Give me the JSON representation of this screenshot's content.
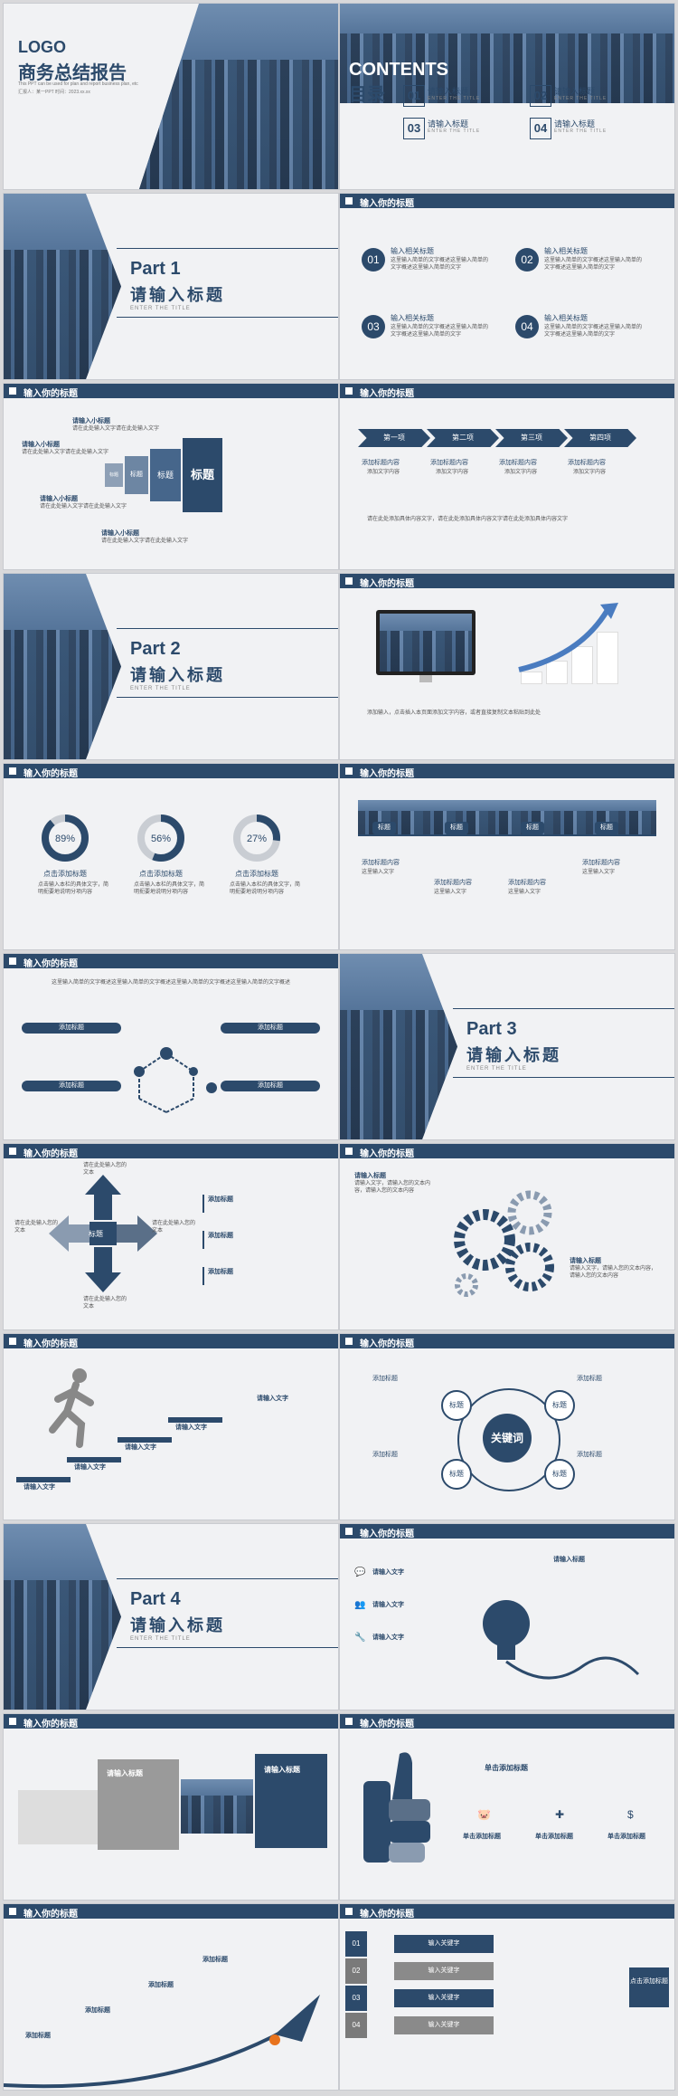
{
  "slides": {
    "s1": {
      "logo": "LOGO",
      "title": "商务总结报告",
      "subtitle": "This PPT can be used for plan and report business plan, etc",
      "meta": "汇报人：某一PPT 时间：2023.xx.xx"
    },
    "s2": {
      "contents_word": "CONTENTS",
      "mulu": "目录",
      "items": [
        {
          "num": "01",
          "title": "请输入标题",
          "sub": "ENTER THE TITLE"
        },
        {
          "num": "02",
          "title": "请输入标题",
          "sub": "ENTER THE TITLE"
        },
        {
          "num": "03",
          "title": "请输入标题",
          "sub": "ENTER THE TITLE"
        },
        {
          "num": "04",
          "title": "请输入标题",
          "sub": "ENTER THE TITLE"
        }
      ]
    },
    "part1": {
      "part": "Part 1",
      "title": "请输入标题",
      "sub": "ENTER THE TITLE"
    },
    "s4": {
      "header": "输入你的标题",
      "items": [
        {
          "num": "01",
          "title": "输入相关标题"
        },
        {
          "num": "02",
          "title": "输入相关标题"
        },
        {
          "num": "03",
          "title": "输入相关标题"
        },
        {
          "num": "04",
          "title": "输入相关标题"
        }
      ],
      "body": "这里输入简单的文字概述这里输入简单的文字概述这里输入简单的文字"
    },
    "s5": {
      "header": "输入你的标题",
      "labels": [
        "请输入小标题",
        "请输入小标题",
        "请输入小标题",
        "请输入小标题"
      ],
      "funnel": [
        "标题",
        "标题",
        "标题",
        "标题"
      ],
      "body": "请在此处输入文字请在此处输入文字"
    },
    "s6": {
      "header": "输入你的标题",
      "steps": [
        "第一项",
        "第二项",
        "第三项",
        "第四项"
      ],
      "item": "添加标题内容",
      "bullets": [
        "添加文字内容",
        "添加文字内容",
        "添加文字内容"
      ],
      "body": "请在此处添加具体内容文字，请在此处添加具体内容文字请在此处添加具体内容文字"
    },
    "part2": {
      "part": "Part 2",
      "title": "请输入标题",
      "sub": "ENTER THE TITLE"
    },
    "s8": {
      "header": "输入你的标题",
      "body": "添加输入，点击插入本页面添加文字内容，或者直接复制文本粘贴到此处"
    },
    "s9": {
      "header": "输入你的标题",
      "rings": [
        {
          "pct": "89%",
          "title": "点击添加标题"
        },
        {
          "pct": "56%",
          "title": "点击添加标题"
        },
        {
          "pct": "27%",
          "title": "点击添加标题"
        }
      ],
      "ring_values": [
        89,
        56,
        27
      ],
      "body": "点击输入本栏的具体文字，简明扼要地说明分项内容"
    },
    "s10": {
      "header": "输入你的标题",
      "tags": [
        "标题",
        "标题",
        "标题",
        "标题"
      ],
      "items": [
        "添加标题内容",
        "添加标题内容",
        "添加标题内容",
        "添加标题内容"
      ],
      "bullets": [
        "这里输入文字",
        "这里输入文字"
      ]
    },
    "s11": {
      "header": "输入你的标题",
      "body": "这里输入简单的文字概述这里输入简单的文字概述这里输入简单的文字概述这里输入简单的文字概述",
      "pills": [
        "添加标题",
        "添加标题",
        "添加标题",
        "添加标题"
      ]
    },
    "part3": {
      "part": "Part 3",
      "title": "请输入标题",
      "sub": "ENTER THE TITLE"
    },
    "s13": {
      "header": "输入你的标题",
      "center": "标题",
      "arrows": [
        "请在此处输入您的文本",
        "请在此处输入您的文本",
        "请在此处输入您的文本",
        "请在此处输入您的文本"
      ],
      "items": [
        "添加标题",
        "添加标题",
        "添加标题"
      ]
    },
    "s14": {
      "header": "输入你的标题",
      "titles": [
        "请输入标题",
        "请输入标题"
      ],
      "body": "请输入文字，请输入您的文本内容，请输入您的文本内容"
    },
    "s15": {
      "header": "输入你的标题",
      "steps": [
        "请输入文字",
        "请输入文字",
        "请输入文字",
        "请输入文字",
        "请输入文字"
      ]
    },
    "s16": {
      "header": "输入你的标题",
      "center": "关键词",
      "nodes": [
        "标题",
        "标题",
        "标题",
        "标题"
      ],
      "labels": [
        "添加标题",
        "添加标题",
        "添加标题",
        "添加标题"
      ]
    },
    "part4": {
      "part": "Part 4",
      "title": "请输入标题",
      "sub": "ENTER THE TITLE"
    },
    "s18": {
      "header": "输入你的标题",
      "items": [
        "请输入文字",
        "请输入文字",
        "请输入文字"
      ],
      "right_title": "请输入标题"
    },
    "s19": {
      "header": "输入你的标题",
      "titles": [
        "请输入标题",
        "请输入标题"
      ]
    },
    "s20": {
      "header": "输入你的标题",
      "main": "单击添加标题",
      "cols": [
        "单击添加标题",
        "单击添加标题",
        "单击添加标题"
      ]
    },
    "s21": {
      "header": "输入你的标题",
      "titles": [
        "添加标题",
        "添加标题",
        "添加标题",
        "添加标题"
      ]
    },
    "s22": {
      "header": "输入你的标题",
      "rows": [
        {
          "num": "01",
          "label": "输入关键字"
        },
        {
          "num": "02",
          "label": "输入关键字"
        },
        {
          "num": "03",
          "label": "输入关键字"
        },
        {
          "num": "04",
          "label": "输入关键字"
        }
      ],
      "side": "点击添加标题"
    }
  }
}
